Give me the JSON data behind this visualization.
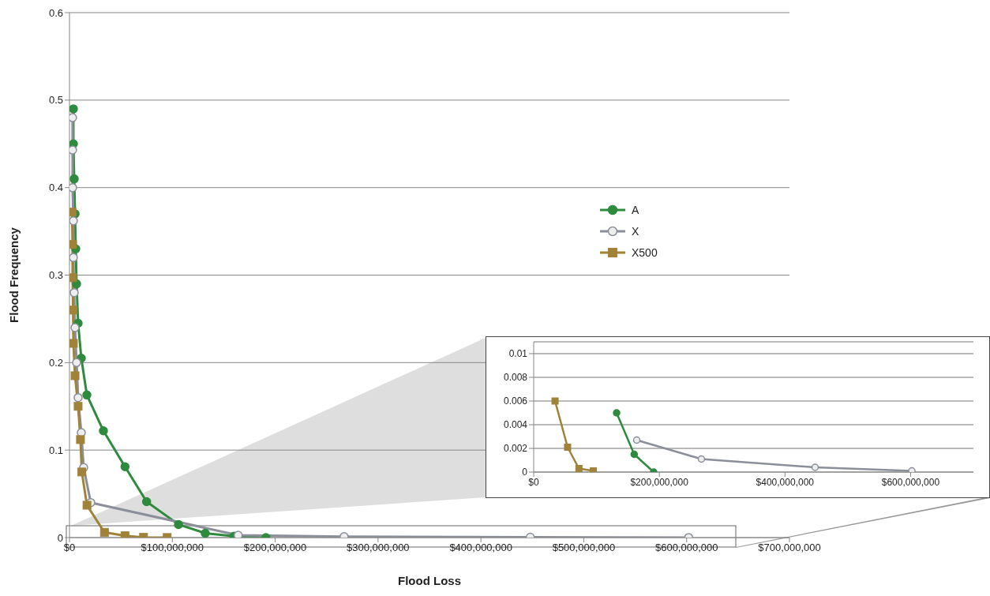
{
  "chart_data": [
    {
      "type": "line",
      "xlabel": "Flood Loss",
      "ylabel": "Flood Frequency",
      "xlim": [
        0,
        700000000
      ],
      "xticks": [
        {
          "value": 0,
          "label": "$0"
        },
        {
          "value": 100000000,
          "label": "$100,000,000"
        },
        {
          "value": 200000000,
          "label": "$200,000,000"
        },
        {
          "value": 300000000,
          "label": "$300,000,000"
        },
        {
          "value": 400000000,
          "label": "$400,000,000"
        },
        {
          "value": 500000000,
          "label": "$500,000,000"
        },
        {
          "value": 600000000,
          "label": "$600,000,000"
        },
        {
          "value": 700000000,
          "label": "$700,000,000"
        }
      ],
      "ylim": [
        0,
        0.6
      ],
      "yticks": [
        0,
        0.1,
        0.2,
        0.3,
        0.4,
        0.5,
        0.6
      ],
      "grid": "y",
      "legend": "top right",
      "series": [
        {
          "name": "A",
          "color": "#2e8b3e",
          "marker": "circle",
          "x": [
            3800000,
            3800000,
            4600000,
            5400000,
            6100000,
            6900000,
            8400000,
            11500000,
            16900000,
            33000000,
            54000000,
            75000000,
            106000000,
            132000000,
            160000000,
            191000000
          ],
          "values": [
            0.49,
            0.45,
            0.41,
            0.37,
            0.33,
            0.29,
            0.245,
            0.205,
            0.163,
            0.122,
            0.081,
            0.041,
            0.015,
            0.005,
            0.0015,
            0
          ]
        },
        {
          "name": "X",
          "color": "#8a8f9a",
          "marker": "circle",
          "x": [
            3000000,
            3000000,
            3000000,
            3800000,
            3800000,
            4600000,
            5400000,
            6900000,
            8400000,
            11500000,
            13800000,
            20700000,
            164000000,
            267000000,
            448000000,
            602000000
          ],
          "values": [
            0.48,
            0.443,
            0.4,
            0.362,
            0.32,
            0.28,
            0.24,
            0.2,
            0.16,
            0.12,
            0.08,
            0.04,
            0.0027,
            0.0011,
            0.0004,
            0.0001
          ]
        },
        {
          "name": "X500",
          "color": "#a08238",
          "marker": "square",
          "x": [
            2500000,
            3000000,
            3000000,
            3500000,
            3800000,
            5400000,
            8400000,
            10700000,
            12000000,
            17000000,
            34000000,
            54000000,
            72000000,
            95000000
          ],
          "values": [
            0.372,
            0.335,
            0.297,
            0.26,
            0.222,
            0.185,
            0.15,
            0.112,
            0.075,
            0.037,
            0.006,
            0.0021,
            0.0003,
            0.0001
          ]
        }
      ]
    },
    {
      "type": "line",
      "xlim": [
        0,
        700000000
      ],
      "xticks": [
        {
          "value": 0,
          "label": "$0"
        },
        {
          "value": 200000000,
          "label": "$200,000,000"
        },
        {
          "value": 400000000,
          "label": "$400,000,000"
        },
        {
          "value": 600000000,
          "label": "$600,000,000"
        }
      ],
      "ylim": [
        0,
        0.011
      ],
      "yticks": [
        0,
        0.002,
        0.004,
        0.006,
        0.008,
        0.01
      ],
      "grid": "y",
      "series": [
        {
          "color": "#2e8b3e",
          "marker": "circle",
          "x": [
            132000000,
            160000000,
            191000000
          ],
          "values": [
            0.005,
            0.0015,
            0
          ]
        },
        {
          "color": "#8a8f9a",
          "marker": "circle",
          "x": [
            164000000,
            267000000,
            448000000,
            602000000
          ],
          "values": [
            0.0027,
            0.0011,
            0.0004,
            0.0001
          ]
        },
        {
          "color": "#a08238",
          "marker": "square",
          "x": [
            34000000,
            54000000,
            72000000,
            95000000
          ],
          "values": [
            0.006,
            0.0021,
            0.0003,
            0.0001
          ]
        }
      ]
    }
  ]
}
